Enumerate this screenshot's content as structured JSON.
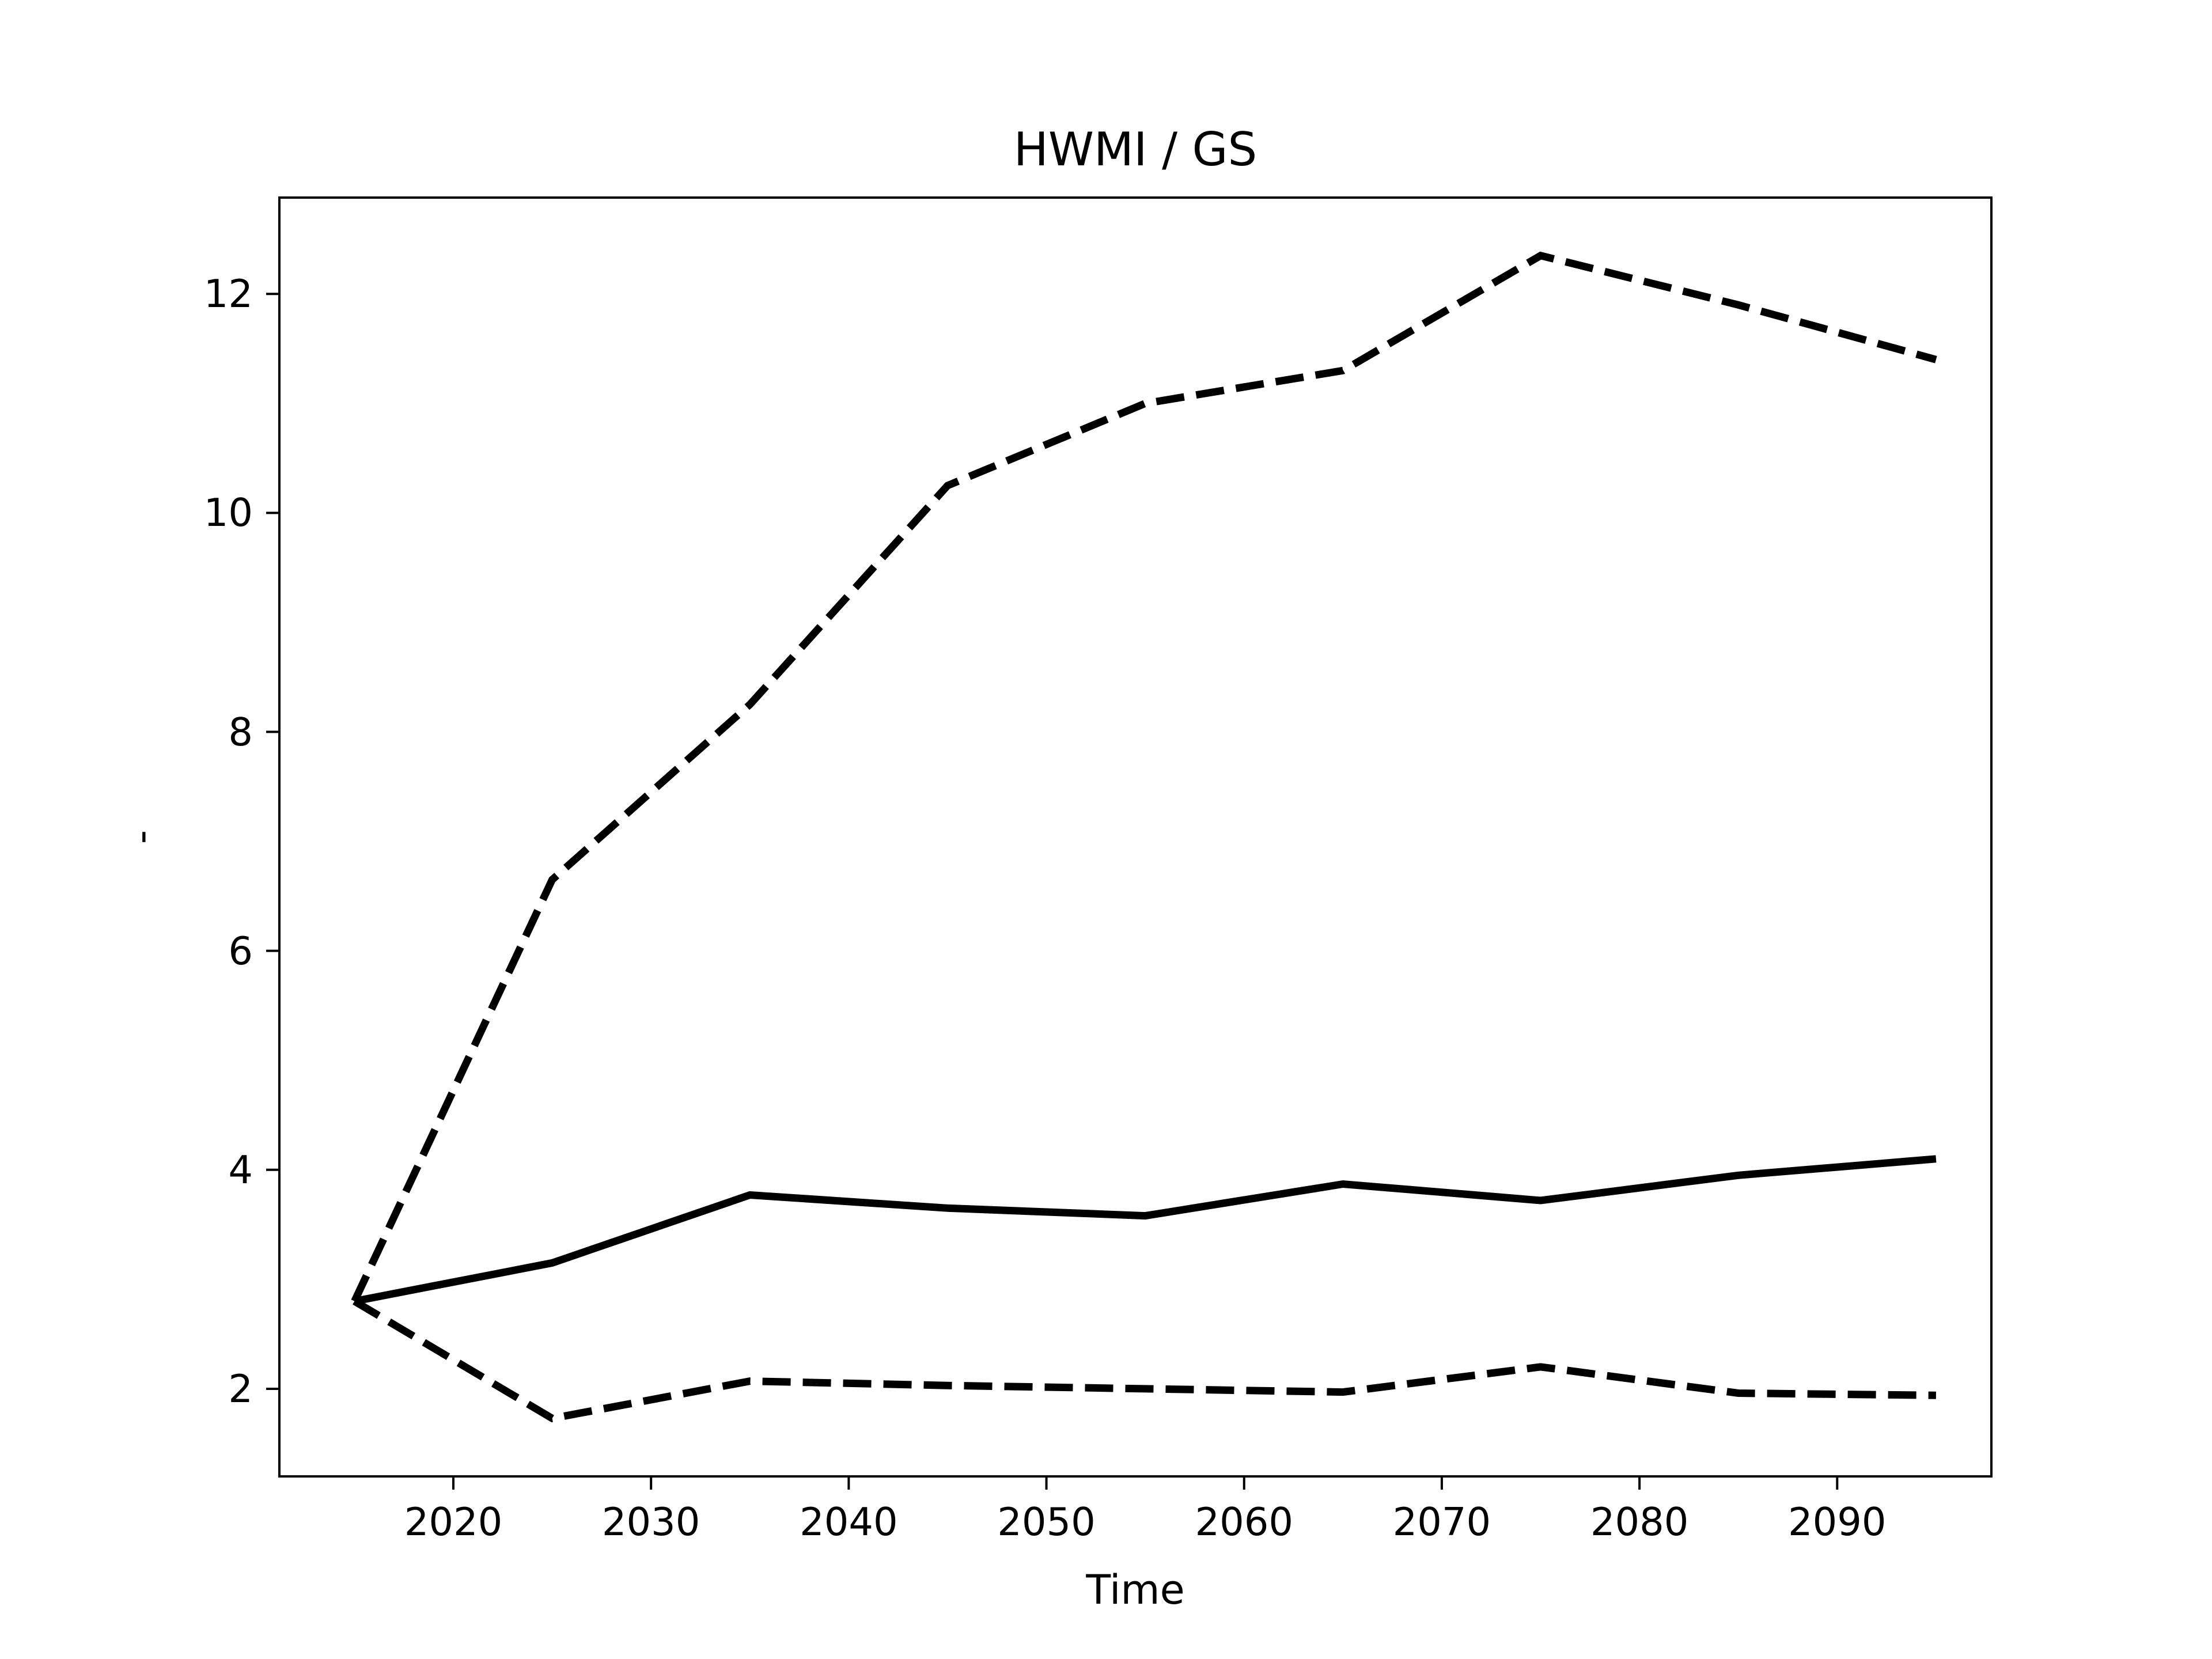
{
  "figure": {
    "background_color": "#ffffff",
    "line_color": "#000000"
  },
  "chart_data": {
    "type": "line",
    "title": "HWMI / GS",
    "xlabel": "Time",
    "ylabel": "-",
    "grid": false,
    "legend": "none",
    "x": [
      2015,
      2025,
      2035,
      2045,
      2055,
      2065,
      2075,
      2085,
      2095
    ],
    "xticks": [
      2020,
      2030,
      2040,
      2050,
      2060,
      2070,
      2080,
      2090
    ],
    "yticks": [
      2,
      4,
      6,
      8,
      10,
      12
    ],
    "xlim": [
      2011.2,
      2097.8
    ],
    "ylim": [
      1.2,
      12.88
    ],
    "series": [
      {
        "name": "upper-bound-dashed",
        "style": "dashed",
        "values": [
          2.8,
          6.65,
          8.25,
          10.25,
          11.0,
          11.3,
          12.35,
          11.9,
          11.4
        ]
      },
      {
        "name": "mean-solid",
        "style": "solid",
        "values": [
          2.8,
          3.15,
          3.77,
          3.65,
          3.58,
          3.87,
          3.72,
          3.95,
          4.1
        ]
      },
      {
        "name": "lower-bound-dashed",
        "style": "dashed",
        "values": [
          2.8,
          1.73,
          2.07,
          2.03,
          2.0,
          1.97,
          2.2,
          1.96,
          1.94
        ]
      }
    ]
  }
}
